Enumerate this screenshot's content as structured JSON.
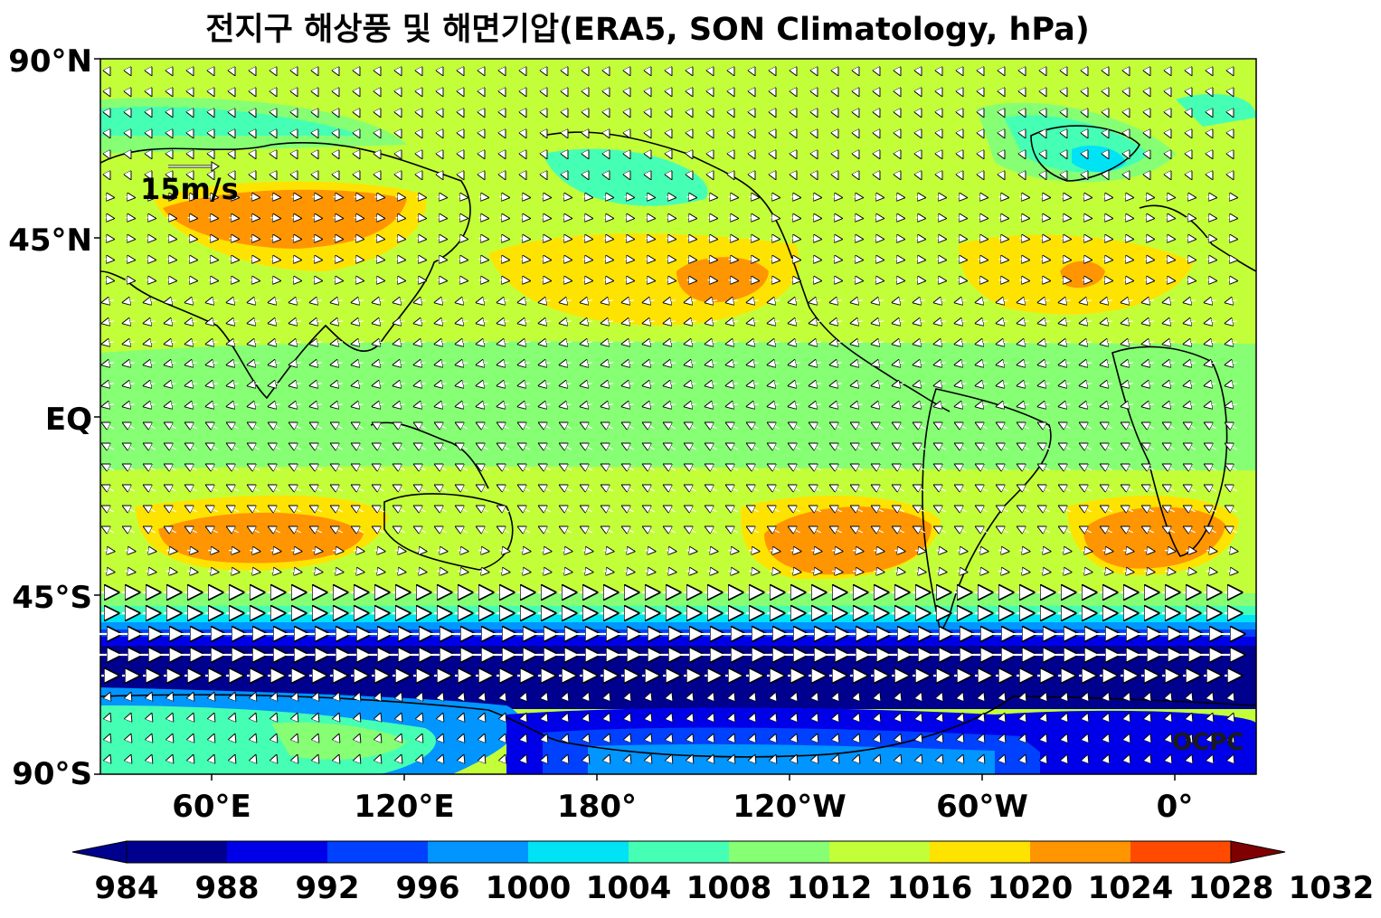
{
  "title": "전지구 해상풍 및 해면기압(ERA5, SON Climatology, hPa)",
  "y_axis": {
    "tick_labels": [
      "90°N",
      "45°N",
      "EQ",
      "45°S",
      "90°S"
    ]
  },
  "x_axis": {
    "tick_labels": [
      "60°E",
      "120°E",
      "180°",
      "120°W",
      "60°W",
      "0°"
    ]
  },
  "reference_vector": {
    "label": "15m/s",
    "speed_ms": 15
  },
  "credit": "OCPC",
  "colorbar": {
    "unit": "hPa",
    "levels": [
      "984",
      "988",
      "992",
      "996",
      "1000",
      "1004",
      "1008",
      "1012",
      "1016",
      "1020",
      "1024",
      "1028",
      "1032"
    ],
    "colors": [
      "#00008f",
      "#0000e8",
      "#0040ff",
      "#0095ff",
      "#00e3f5",
      "#45ffb4",
      "#86ff74",
      "#c3ff39",
      "#ffe300",
      "#ff9500",
      "#ff4a00",
      "#ef0000",
      "#7f0000"
    ],
    "extend": "both"
  }
}
